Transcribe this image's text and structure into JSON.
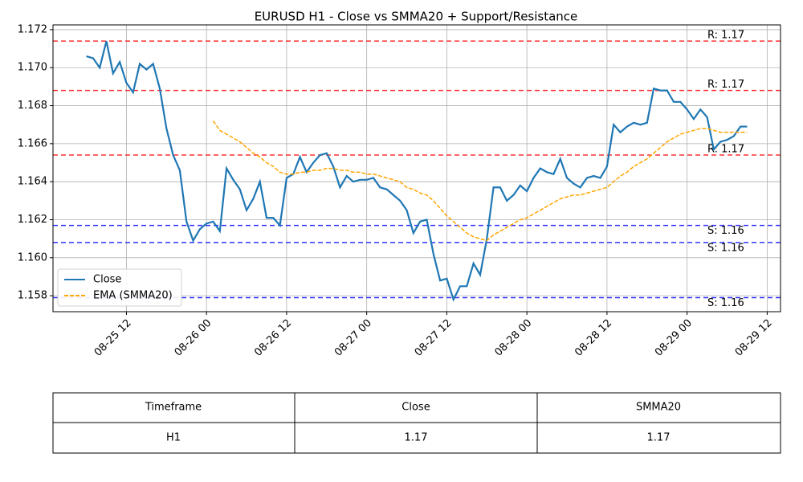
{
  "chart_data": {
    "type": "line",
    "title": "EURUSD H1 - Close vs SMMA20 + Support/Resistance",
    "x": [
      "08-25 06",
      "08-25 07",
      "08-25 08",
      "08-25 09",
      "08-25 10",
      "08-25 11",
      "08-25 12",
      "08-25 13",
      "08-25 14",
      "08-25 15",
      "08-25 16",
      "08-25 17",
      "08-25 18",
      "08-25 19",
      "08-25 20",
      "08-25 21",
      "08-25 22",
      "08-25 23",
      "08-26 00",
      "08-26 01",
      "08-26 02",
      "08-26 03",
      "08-26 04",
      "08-26 05",
      "08-26 06",
      "08-26 07",
      "08-26 08",
      "08-26 09",
      "08-26 10",
      "08-26 11",
      "08-26 12",
      "08-26 13",
      "08-26 14",
      "08-26 15",
      "08-26 16",
      "08-26 17",
      "08-26 18",
      "08-26 19",
      "08-26 20",
      "08-26 21",
      "08-26 22",
      "08-26 23",
      "08-27 00",
      "08-27 01",
      "08-27 02",
      "08-27 03",
      "08-27 04",
      "08-27 05",
      "08-27 06",
      "08-27 07",
      "08-27 08",
      "08-27 09",
      "08-27 10",
      "08-27 11",
      "08-27 12",
      "08-27 13",
      "08-27 14",
      "08-27 15",
      "08-27 16",
      "08-27 17",
      "08-27 18",
      "08-27 19",
      "08-27 20",
      "08-27 21",
      "08-27 22",
      "08-27 23",
      "08-28 00",
      "08-28 01",
      "08-28 02",
      "08-28 03",
      "08-28 04",
      "08-28 05",
      "08-28 06",
      "08-28 07",
      "08-28 08",
      "08-28 09",
      "08-28 10",
      "08-28 11",
      "08-28 12",
      "08-28 13",
      "08-28 14",
      "08-28 15",
      "08-28 16",
      "08-28 17",
      "08-28 18",
      "08-28 19",
      "08-28 20",
      "08-28 21",
      "08-28 22",
      "08-28 23",
      "08-29 00",
      "08-29 01",
      "08-29 02",
      "08-29 03",
      "08-29 04",
      "08-29 05",
      "08-29 06",
      "08-29 07",
      "08-29 08",
      "08-29 09"
    ],
    "series": [
      {
        "name": "Close",
        "color": "#1f77b4",
        "linestyle": "solid",
        "values": [
          1.1706,
          1.1705,
          1.17,
          1.1714,
          1.1697,
          1.1703,
          1.1692,
          1.1687,
          1.1702,
          1.1699,
          1.1702,
          1.1689,
          1.1668,
          1.1654,
          1.1646,
          1.1619,
          1.1609,
          1.1615,
          1.1618,
          1.1619,
          1.1614,
          1.1647,
          1.1641,
          1.1636,
          1.1625,
          1.1631,
          1.164,
          1.1621,
          1.1621,
          1.1617,
          1.1642,
          1.1644,
          1.1653,
          1.1645,
          1.165,
          1.1654,
          1.1655,
          1.1648,
          1.1637,
          1.1643,
          1.164,
          1.1641,
          1.1641,
          1.1642,
          1.1637,
          1.1636,
          1.1633,
          1.163,
          1.1625,
          1.1613,
          1.1619,
          1.162,
          1.1602,
          1.1588,
          1.1589,
          1.1578,
          1.1585,
          1.1585,
          1.1597,
          1.1591,
          1.161,
          1.1637,
          1.1637,
          1.163,
          1.1633,
          1.1638,
          1.1635,
          1.1642,
          1.1647,
          1.1645,
          1.1644,
          1.1652,
          1.1642,
          1.1639,
          1.1637,
          1.1642,
          1.1643,
          1.1642,
          1.1648,
          1.167,
          1.1666,
          1.1669,
          1.1671,
          1.167,
          1.1671,
          1.1689,
          1.1688,
          1.1688,
          1.1682,
          1.1682,
          1.1678,
          1.1673,
          1.1678,
          1.1674,
          1.1657,
          1.1661,
          1.1662,
          1.1664,
          1.1669,
          1.1669
        ]
      },
      {
        "name": "EMA (SMMA20)",
        "color": "#ffa500",
        "linestyle": "dashed",
        "values": [
          null,
          null,
          null,
          null,
          null,
          null,
          null,
          null,
          null,
          null,
          null,
          null,
          null,
          null,
          null,
          null,
          null,
          null,
          null,
          1.1672,
          1.1667,
          1.1665,
          1.1663,
          1.1661,
          1.1658,
          1.1655,
          1.1653,
          1.165,
          1.1648,
          1.1645,
          1.1644,
          1.1644,
          1.1645,
          1.1645,
          1.1646,
          1.1646,
          1.1647,
          1.1647,
          1.1646,
          1.1646,
          1.1645,
          1.1645,
          1.1644,
          1.1644,
          1.1643,
          1.1642,
          1.1641,
          1.164,
          1.1637,
          1.1636,
          1.1634,
          1.1633,
          1.163,
          1.1626,
          1.1622,
          1.1619,
          1.1616,
          1.1613,
          1.1611,
          1.161,
          1.1609,
          1.1612,
          1.1614,
          1.1616,
          1.1618,
          1.162,
          1.1621,
          1.1623,
          1.1625,
          1.1627,
          1.1629,
          1.1631,
          1.1632,
          1.1633,
          1.1633,
          1.1634,
          1.1635,
          1.1636,
          1.1637,
          1.164,
          1.1643,
          1.1645,
          1.1648,
          1.165,
          1.1652,
          1.1655,
          1.1658,
          1.1661,
          1.1663,
          1.1665,
          1.1666,
          1.1667,
          1.1668,
          1.1668,
          1.1667,
          1.1666,
          1.1666,
          1.1666,
          1.1666,
          1.1666
        ]
      }
    ],
    "levels": [
      {
        "label": "R: 1.17",
        "value": 1.1714,
        "color": "#ff0000",
        "position": "above"
      },
      {
        "label": "R: 1.17",
        "value": 1.1688,
        "color": "#ff0000",
        "position": "above"
      },
      {
        "label": "R: 1.17",
        "value": 1.1654,
        "color": "#ff0000",
        "position": "above"
      },
      {
        "label": "S: 1.16",
        "value": 1.1617,
        "color": "#0000ff",
        "position": "below"
      },
      {
        "label": "S: 1.16",
        "value": 1.1608,
        "color": "#0000ff",
        "position": "below"
      },
      {
        "label": "S: 1.16",
        "value": 1.1579,
        "color": "#0000ff",
        "position": "below"
      }
    ],
    "xlim": [
      "08-25 01",
      "08-29 14"
    ],
    "xticks": [
      "08-25 12",
      "08-26 00",
      "08-26 12",
      "08-27 00",
      "08-27 12",
      "08-28 00",
      "08-28 12",
      "08-29 00",
      "08-29 12"
    ],
    "ylim": [
      1.15716,
      1.17225
    ],
    "yticks": [
      1.158,
      {
        "value": 1.16,
        "label": "1.160"
      },
      1.162,
      1.164,
      1.166,
      1.168,
      {
        "value": 1.17,
        "label": "1.170"
      },
      1.172
    ],
    "grid": true,
    "legend": "lower left"
  },
  "table": {
    "header": [
      "Timeframe",
      "Close",
      "SMMA20"
    ],
    "rows": [
      [
        "H1",
        "1.17",
        "1.17"
      ]
    ]
  }
}
